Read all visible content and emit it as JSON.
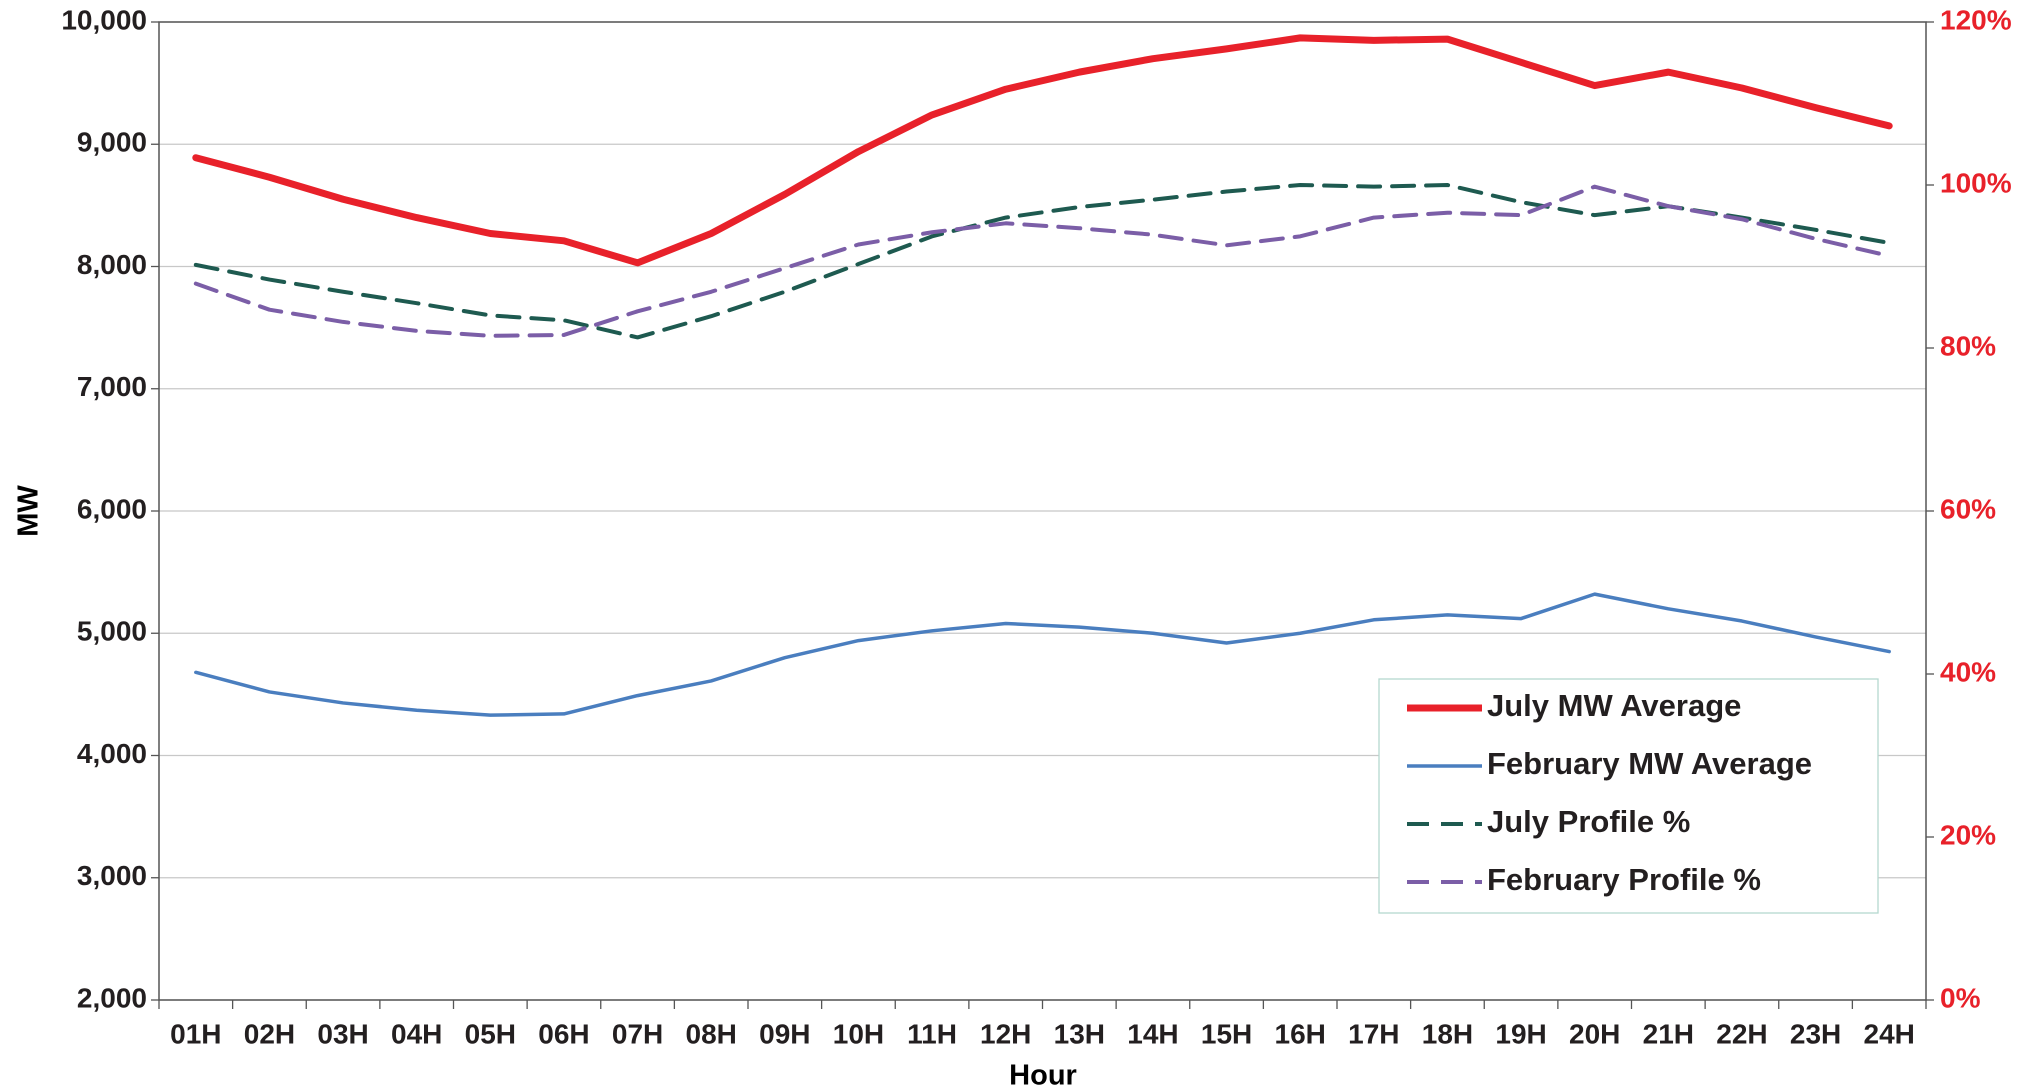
{
  "chart_data": {
    "type": "line",
    "x_label": "Hour",
    "y_label": "MW",
    "categories": [
      "01H",
      "02H",
      "03H",
      "04H",
      "05H",
      "06H",
      "07H",
      "08H",
      "09H",
      "10H",
      "11H",
      "12H",
      "13H",
      "14H",
      "15H",
      "16H",
      "17H",
      "18H",
      "19H",
      "20H",
      "21H",
      "22H",
      "23H",
      "24H"
    ],
    "series": [
      {
        "name": "July MW Average",
        "color": "#e8212a",
        "linestyle": "solid",
        "values": [
          8890,
          8730,
          8550,
          8400,
          8270,
          8210,
          8030,
          8270,
          8590,
          8940,
          9240,
          9450,
          9590,
          9700,
          9780,
          9870,
          9850,
          9860,
          9670,
          9480,
          9590,
          9460,
          9300,
          9150
        ]
      },
      {
        "name": "February MW Average",
        "color": "#4a7ebf",
        "linestyle": "solid",
        "values": [
          4680,
          4520,
          4430,
          4370,
          4330,
          4340,
          4490,
          4610,
          4800,
          4940,
          5020,
          5080,
          5050,
          5000,
          4920,
          5000,
          5110,
          5150,
          5120,
          5320,
          5200,
          5100,
          4970,
          4850
        ]
      },
      {
        "name": "July Profile %",
        "color": "#1e5a50",
        "linestyle": "dashed",
        "axis": "y2",
        "values": [
          90.2,
          88.4,
          86.9,
          85.5,
          84.0,
          83.4,
          81.3,
          83.9,
          86.9,
          90.3,
          93.7,
          96.0,
          97.3,
          98.2,
          99.2,
          100,
          99.8,
          100,
          97.9,
          96.3,
          97.4,
          96.0,
          94.5,
          92.9
        ]
      },
      {
        "name": "February Profile %",
        "color": "#7b5ea7",
        "linestyle": "dashed",
        "axis": "y2",
        "values": [
          87.9,
          84.7,
          83.2,
          82.1,
          81.5,
          81.6,
          84.5,
          86.9,
          89.8,
          92.7,
          94.2,
          95.3,
          94.7,
          93.9,
          92.6,
          93.7,
          96.0,
          96.6,
          96.3,
          99.8,
          97.4,
          95.8,
          93.4,
          91.3
        ]
      }
    ],
    "ylim": [
      2000,
      10000
    ],
    "yticks": [
      {
        "value": 2000,
        "label": "2,000"
      },
      {
        "value": 3000,
        "label": "3,000"
      },
      {
        "value": 4000,
        "label": "4,000"
      },
      {
        "value": 5000,
        "label": "5,000"
      },
      {
        "value": 6000,
        "label": "6,000"
      },
      {
        "value": 7000,
        "label": "7,000"
      },
      {
        "value": 8000,
        "label": "8,000"
      },
      {
        "value": 9000,
        "label": "9,000"
      },
      {
        "value": 10000,
        "label": "10,000"
      }
    ],
    "y2lim": [
      0,
      120
    ],
    "y2ticks": [
      {
        "value": 0,
        "label": "0%"
      },
      {
        "value": 20,
        "label": "20%"
      },
      {
        "value": 40,
        "label": "40%"
      },
      {
        "value": 60,
        "label": "60%"
      },
      {
        "value": 80,
        "label": "80%"
      },
      {
        "value": 100,
        "label": "100%"
      },
      {
        "value": 120,
        "label": "120%"
      }
    ],
    "y2_color": "#e8212a",
    "grid": true,
    "legend": "lower right"
  }
}
